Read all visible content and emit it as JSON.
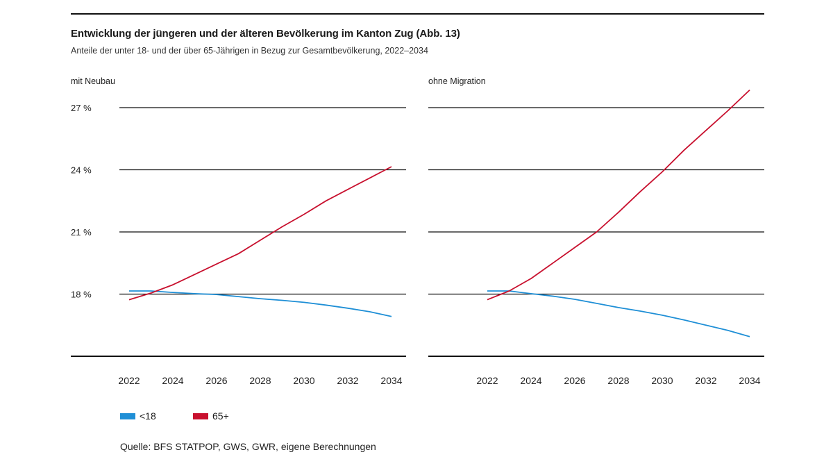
{
  "title": "Entwicklung der jüngeren und der älteren Bevölkerung im Kanton Zug (Abb. 13)",
  "subtitle": "Anteile der unter 18- und der über 65-Jährigen in Bezug zur Gesamtbevölkerung, 2022–2034",
  "source": "Quelle: BFS STATPOP, GWS, GWR, eigene Berechnungen",
  "colors": {
    "under18": "#1f8fd6",
    "over65": "#c8102e",
    "grid": "#111111"
  },
  "chart_data": [
    {
      "type": "line",
      "panel_title": "mit Neubau",
      "x": [
        2022,
        2023,
        2024,
        2025,
        2026,
        2027,
        2028,
        2029,
        2030,
        2031,
        2032,
        2033,
        2034
      ],
      "xticks": [
        "2022",
        "2024",
        "2026",
        "2028",
        "2030",
        "2032",
        "2034"
      ],
      "yticks": [
        "18 %",
        "21 %",
        "24 %",
        "27 %"
      ],
      "ytick_values": [
        18,
        21,
        24,
        27
      ],
      "ylim": [
        15,
        27
      ],
      "grid": true,
      "series": [
        {
          "name": "<18",
          "values": [
            18.15,
            18.15,
            18.08,
            18.02,
            17.98,
            17.88,
            17.78,
            17.7,
            17.6,
            17.47,
            17.32,
            17.15,
            16.92
          ]
        },
        {
          "name": "65+",
          "values": [
            17.73,
            18.05,
            18.45,
            18.95,
            19.45,
            19.95,
            20.6,
            21.25,
            21.85,
            22.5,
            23.05,
            23.6,
            24.15
          ]
        }
      ]
    },
    {
      "type": "line",
      "panel_title": "ohne Migration",
      "x": [
        2022,
        2023,
        2024,
        2025,
        2026,
        2027,
        2028,
        2029,
        2030,
        2031,
        2032,
        2033,
        2034
      ],
      "xticks": [
        "2022",
        "2024",
        "2026",
        "2028",
        "2030",
        "2032",
        "2034"
      ],
      "yticks": [
        "18 %",
        "21 %",
        "24 %",
        "27 %"
      ],
      "ytick_values": [
        18,
        21,
        24,
        27
      ],
      "ylim": [
        15,
        27
      ],
      "grid": true,
      "series": [
        {
          "name": "<18",
          "values": [
            18.15,
            18.15,
            18.02,
            17.9,
            17.75,
            17.55,
            17.35,
            17.18,
            16.98,
            16.75,
            16.5,
            16.25,
            15.95
          ]
        },
        {
          "name": "65+",
          "values": [
            17.73,
            18.15,
            18.75,
            19.5,
            20.25,
            21.0,
            21.95,
            22.95,
            23.9,
            24.95,
            25.9,
            26.85,
            27.85
          ]
        }
      ]
    }
  ],
  "legend": [
    {
      "label": "<18",
      "color": "#1f8fd6"
    },
    {
      "label": "65+",
      "color": "#c8102e"
    }
  ]
}
